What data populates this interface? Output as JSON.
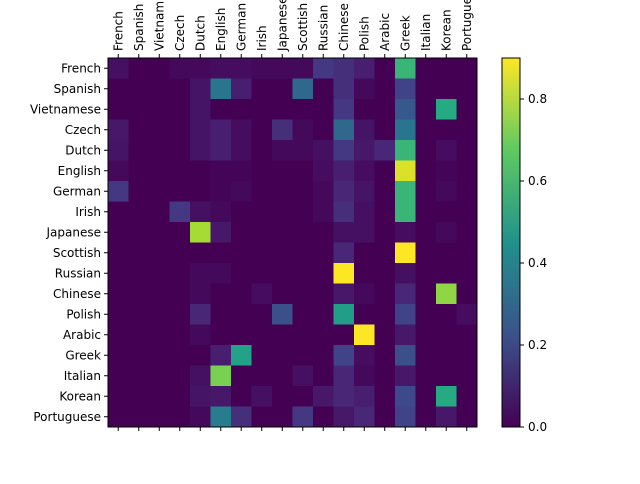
{
  "chart_data": {
    "type": "heatmap",
    "title": "",
    "xlabel": "",
    "ylabel": "",
    "x_categories": [
      "French",
      "Spanish",
      "Vietnamese",
      "Czech",
      "Dutch",
      "English",
      "German",
      "Irish",
      "Japanese",
      "Scottish",
      "Russian",
      "Chinese",
      "Polish",
      "Arabic",
      "Greek",
      "Italian",
      "Korean",
      "Portuguese"
    ],
    "y_categories": [
      "French",
      "Spanish",
      "Vietnamese",
      "Czech",
      "Dutch",
      "English",
      "German",
      "Irish",
      "Japanese",
      "Scottish",
      "Russian",
      "Chinese",
      "Polish",
      "Arabic",
      "Greek",
      "Italian",
      "Korean",
      "Portuguese"
    ],
    "x_tick_labels": [
      "French",
      "Spanish",
      "Vietnam",
      "Czech",
      "Dutch",
      "English",
      "German",
      "Irish",
      "Japanese",
      "Scottish",
      "Russian",
      "Chinese",
      "Polish",
      "Arabic",
      "Greek",
      "Italian",
      "Korean",
      "Portugue"
    ],
    "colormap": "viridis",
    "colorbar": {
      "min": 0.0,
      "max": 0.9,
      "ticks": [
        0.0,
        0.2,
        0.4,
        0.6,
        0.8
      ],
      "tick_labels": [
        "0.0",
        "0.2",
        "0.4",
        "0.6",
        "0.8"
      ]
    },
    "grid": false,
    "values": [
      [
        0.04,
        0.0,
        0.0,
        0.02,
        0.02,
        0.03,
        0.03,
        0.02,
        0.02,
        0.02,
        0.15,
        0.12,
        0.08,
        0.0,
        0.6,
        0.0,
        0.0,
        0.0
      ],
      [
        0.0,
        0.0,
        0.0,
        0.0,
        0.05,
        0.35,
        0.08,
        0.0,
        0.0,
        0.3,
        0.0,
        0.12,
        0.02,
        0.0,
        0.18,
        0.0,
        0.0,
        0.0
      ],
      [
        0.0,
        0.0,
        0.0,
        0.0,
        0.05,
        0.0,
        0.0,
        0.0,
        0.0,
        0.0,
        0.0,
        0.15,
        0.0,
        0.0,
        0.25,
        0.0,
        0.55,
        0.0
      ],
      [
        0.06,
        0.0,
        0.0,
        0.0,
        0.05,
        0.08,
        0.03,
        0.0,
        0.12,
        0.02,
        0.0,
        0.3,
        0.05,
        0.0,
        0.35,
        0.0,
        0.0,
        0.0
      ],
      [
        0.05,
        0.0,
        0.0,
        0.0,
        0.05,
        0.08,
        0.03,
        0.0,
        0.02,
        0.02,
        0.04,
        0.15,
        0.06,
        0.1,
        0.6,
        0.0,
        0.03,
        0.0
      ],
      [
        0.02,
        0.0,
        0.0,
        0.0,
        0.0,
        0.01,
        0.01,
        0.0,
        0.0,
        0.0,
        0.03,
        0.08,
        0.03,
        0.0,
        0.85,
        0.0,
        0.01,
        0.0
      ],
      [
        0.15,
        0.0,
        0.0,
        0.0,
        0.0,
        0.01,
        0.02,
        0.0,
        0.0,
        0.0,
        0.02,
        0.1,
        0.05,
        0.0,
        0.6,
        0.0,
        0.02,
        0.0
      ],
      [
        0.0,
        0.0,
        0.0,
        0.15,
        0.04,
        0.02,
        0.0,
        0.0,
        0.0,
        0.0,
        0.02,
        0.12,
        0.04,
        0.0,
        0.6,
        0.0,
        0.0,
        0.0
      ],
      [
        0.0,
        0.0,
        0.0,
        0.0,
        0.78,
        0.06,
        0.0,
        0.0,
        0.0,
        0.0,
        0.0,
        0.04,
        0.04,
        0.0,
        0.03,
        0.0,
        0.02,
        0.0
      ],
      [
        0.0,
        0.0,
        0.0,
        0.0,
        0.0,
        0.0,
        0.0,
        0.0,
        0.0,
        0.0,
        0.0,
        0.1,
        0.0,
        0.0,
        0.9,
        0.0,
        0.0,
        0.0
      ],
      [
        0.0,
        0.0,
        0.0,
        0.0,
        0.02,
        0.02,
        0.0,
        0.0,
        0.0,
        0.0,
        0.0,
        0.9,
        0.0,
        0.0,
        0.04,
        0.0,
        0.0,
        0.0
      ],
      [
        0.0,
        0.0,
        0.0,
        0.0,
        0.02,
        0.0,
        0.0,
        0.03,
        0.0,
        0.0,
        0.0,
        0.06,
        0.02,
        0.0,
        0.1,
        0.0,
        0.75,
        0.0
      ],
      [
        0.0,
        0.0,
        0.0,
        0.0,
        0.1,
        0.0,
        0.0,
        0.0,
        0.22,
        0.0,
        0.0,
        0.5,
        0.0,
        0.0,
        0.18,
        0.0,
        0.0,
        0.03
      ],
      [
        0.0,
        0.0,
        0.0,
        0.0,
        0.02,
        0.0,
        0.0,
        0.0,
        0.0,
        0.0,
        0.0,
        0.0,
        0.9,
        0.0,
        0.06,
        0.0,
        0.0,
        0.0
      ],
      [
        0.0,
        0.0,
        0.0,
        0.0,
        0.0,
        0.08,
        0.52,
        0.0,
        0.0,
        0.0,
        0.0,
        0.18,
        0.03,
        0.0,
        0.22,
        0.0,
        0.0,
        0.0
      ],
      [
        0.0,
        0.0,
        0.0,
        0.0,
        0.04,
        0.72,
        0.0,
        0.0,
        0.0,
        0.04,
        0.0,
        0.1,
        0.02,
        0.0,
        0.06,
        0.0,
        0.0,
        0.0
      ],
      [
        0.0,
        0.0,
        0.0,
        0.0,
        0.05,
        0.06,
        0.0,
        0.04,
        0.0,
        0.0,
        0.06,
        0.1,
        0.08,
        0.0,
        0.2,
        0.0,
        0.55,
        0.0
      ],
      [
        0.0,
        0.0,
        0.0,
        0.0,
        0.02,
        0.38,
        0.12,
        0.0,
        0.0,
        0.15,
        0.0,
        0.06,
        0.1,
        0.0,
        0.18,
        0.0,
        0.06,
        0.0
      ]
    ]
  }
}
